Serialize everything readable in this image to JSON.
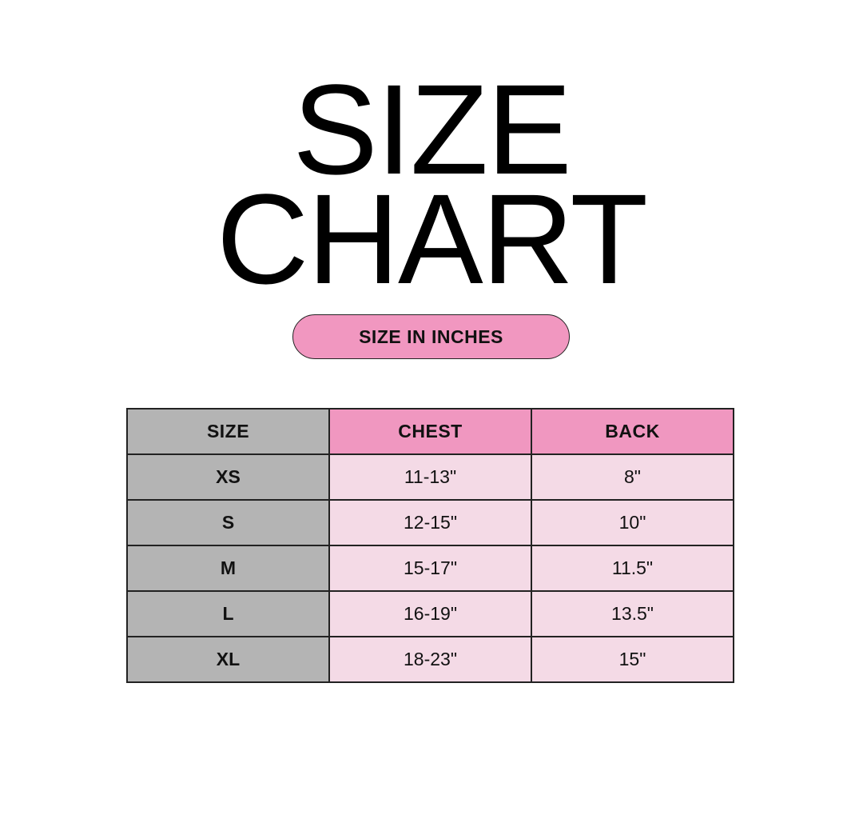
{
  "title": {
    "line1": "SIZE",
    "line2": "CHART"
  },
  "subtitle_badge": "SIZE IN INCHES",
  "colors": {
    "badge_pink": "#f197c0",
    "header_pink": "#f097c0",
    "cell_light_pink": "#f4dae6",
    "size_column_gray": "#b4b4b4"
  },
  "table": {
    "headers": [
      "SIZE",
      "CHEST",
      "BACK"
    ],
    "rows": [
      {
        "size": "XS",
        "chest": "11-13\"",
        "back": "8\""
      },
      {
        "size": "S",
        "chest": "12-15\"",
        "back": "10\""
      },
      {
        "size": "M",
        "chest": "15-17\"",
        "back": "11.5\""
      },
      {
        "size": "L",
        "chest": "16-19\"",
        "back": "13.5\""
      },
      {
        "size": "XL",
        "chest": "18-23\"",
        "back": "15\""
      }
    ]
  }
}
